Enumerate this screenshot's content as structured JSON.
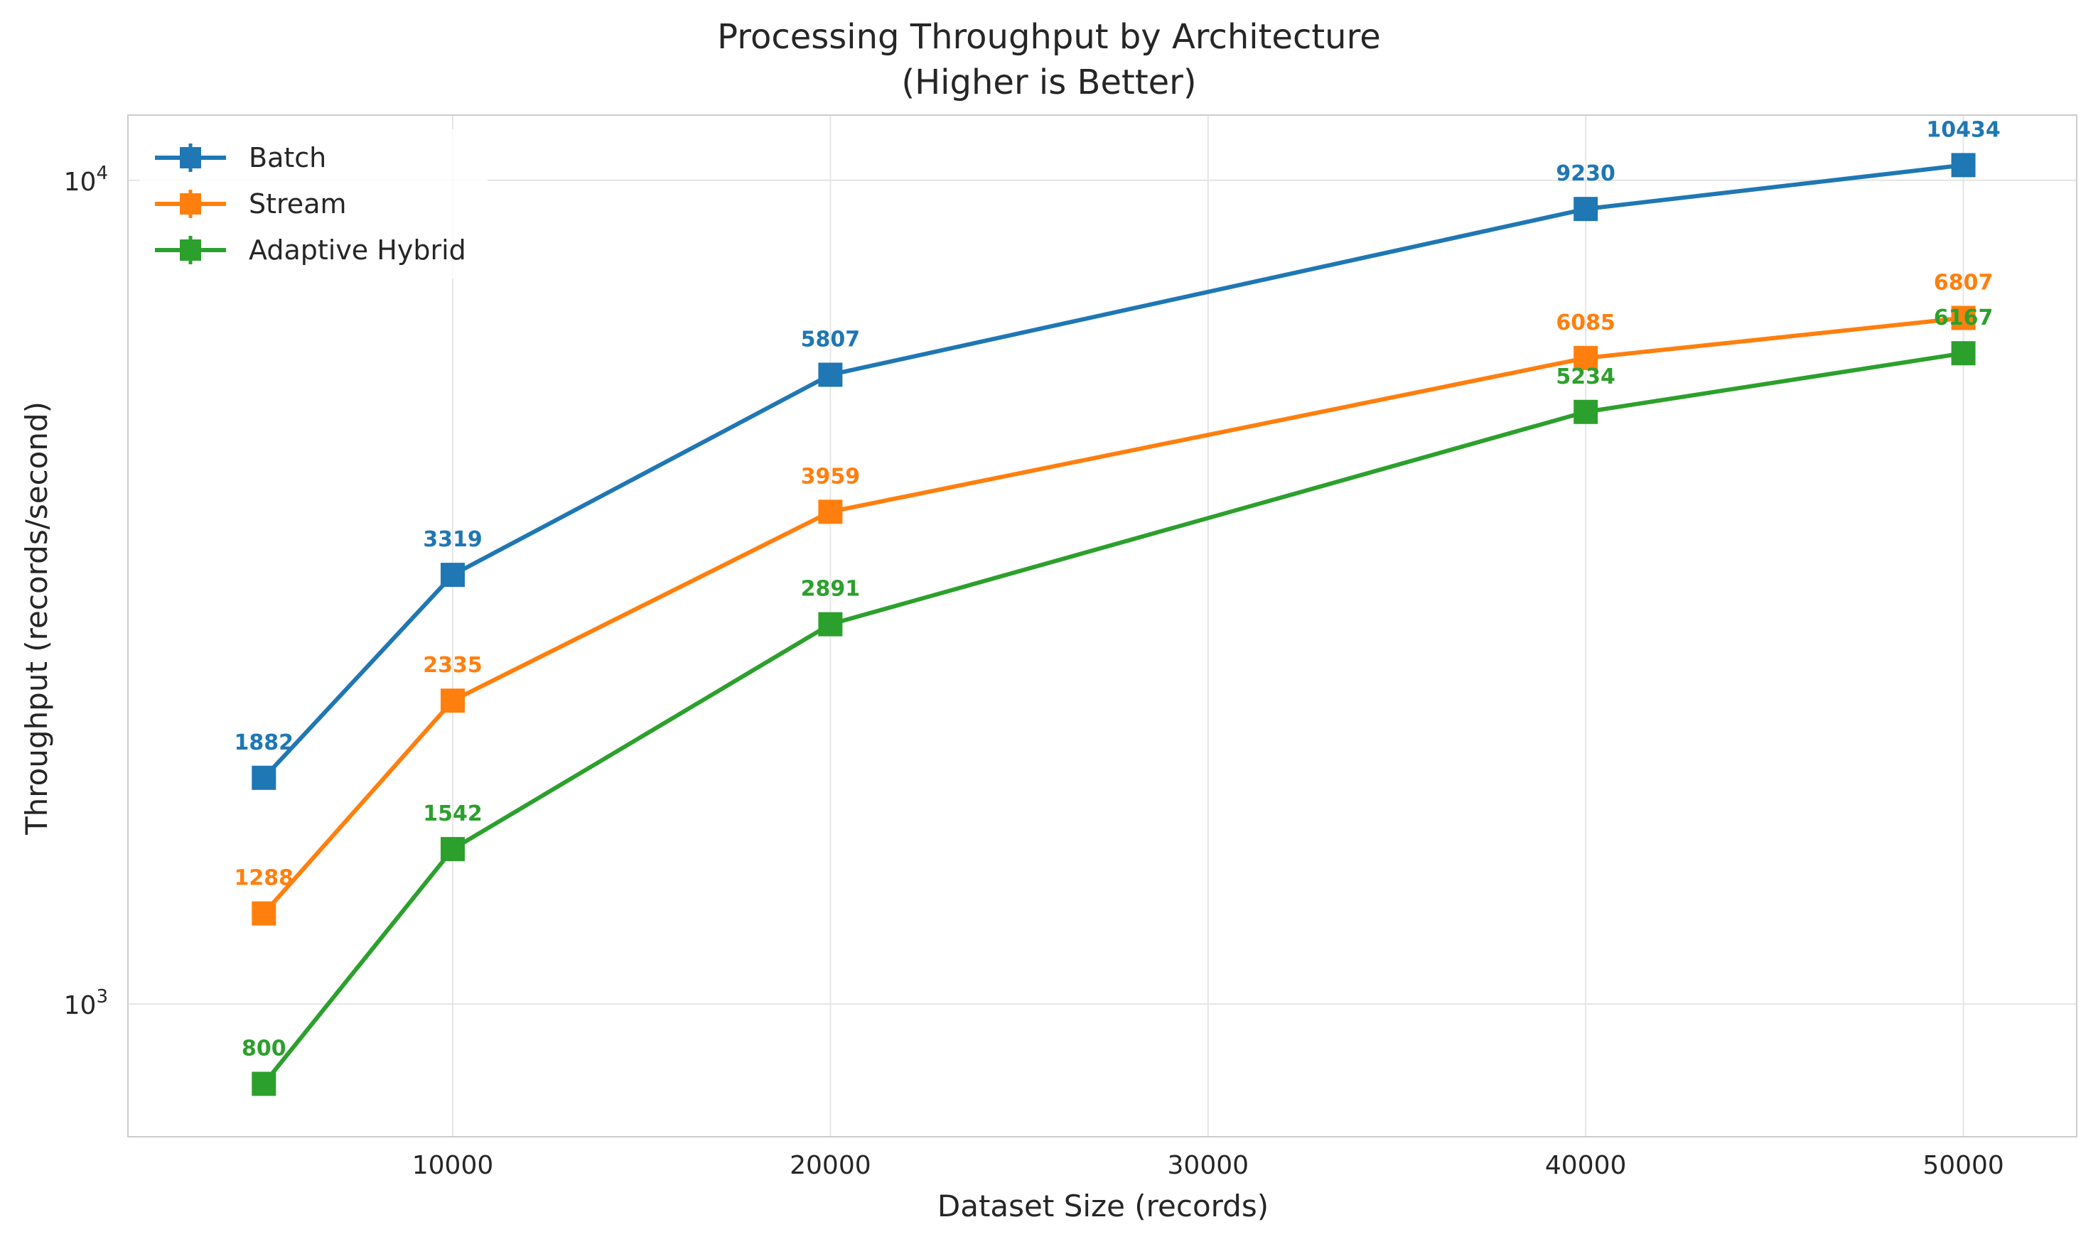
{
  "chart_data": {
    "type": "line",
    "title": "Processing Throughput by Architecture",
    "subtitle": "(Higher is Better)",
    "xlabel": "Dataset Size (records)",
    "ylabel": "Throughput (records/second)",
    "x": [
      5000,
      10000,
      20000,
      40000,
      50000
    ],
    "xlim": [
      1400,
      53000
    ],
    "ylim": [
      690,
      12000
    ],
    "yscale": "log",
    "xticks": [
      "10000",
      "20000",
      "30000",
      "40000",
      "50000"
    ],
    "xtick_values": [
      10000,
      20000,
      30000,
      40000,
      50000
    ],
    "yticks": [
      {
        "base": "10",
        "exp": "3",
        "value": 1000
      },
      {
        "base": "10",
        "exp": "4",
        "value": 10000
      }
    ],
    "grid": true,
    "legend_position": "top-left",
    "series": [
      {
        "name": "Batch",
        "color": "#1f77b4",
        "values": [
          1882,
          3319,
          5807,
          9230,
          10434
        ],
        "labels": [
          "1882",
          "3319",
          "5807",
          "9230",
          "10434"
        ]
      },
      {
        "name": "Stream",
        "color": "#ff7f0e",
        "values": [
          1288,
          2335,
          3959,
          6085,
          6807
        ],
        "labels": [
          "1288",
          "2335",
          "3959",
          "6085",
          "6807"
        ]
      },
      {
        "name": "Adaptive Hybrid",
        "color": "#2ca02c",
        "values": [
          800,
          1542,
          2891,
          5234,
          6167
        ],
        "labels": [
          "800",
          "1542",
          "2891",
          "5234",
          "6167"
        ]
      }
    ]
  }
}
